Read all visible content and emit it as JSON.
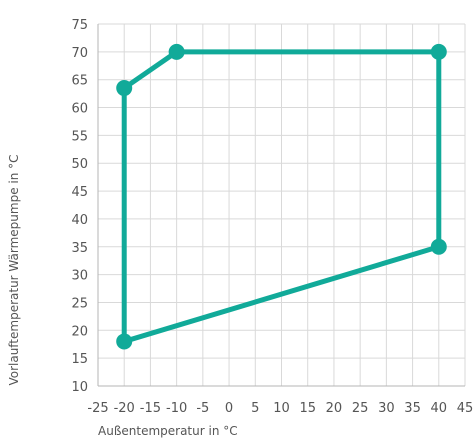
{
  "chart_data": {
    "type": "line",
    "title": "",
    "xlabel": "Außentemperatur in °C",
    "ylabel": "Vorlauftemperatur Wärmepumpe in °C",
    "xlim": [
      -25,
      45
    ],
    "ylim": [
      10,
      75
    ],
    "xticks": [
      -25,
      -20,
      -15,
      -10,
      -5,
      0,
      5,
      10,
      15,
      20,
      25,
      30,
      35,
      40,
      45
    ],
    "yticks": [
      10,
      15,
      20,
      25,
      30,
      35,
      40,
      45,
      50,
      55,
      60,
      65,
      70,
      75
    ],
    "grid": true,
    "series": [
      {
        "points": [
          {
            "x": -20,
            "y": 63.5
          },
          {
            "x": -10,
            "y": 70
          },
          {
            "x": 40,
            "y": 70
          },
          {
            "x": 40,
            "y": 35
          },
          {
            "x": -20,
            "y": 18
          }
        ],
        "closed": true,
        "color": "#11aa99"
      }
    ]
  }
}
